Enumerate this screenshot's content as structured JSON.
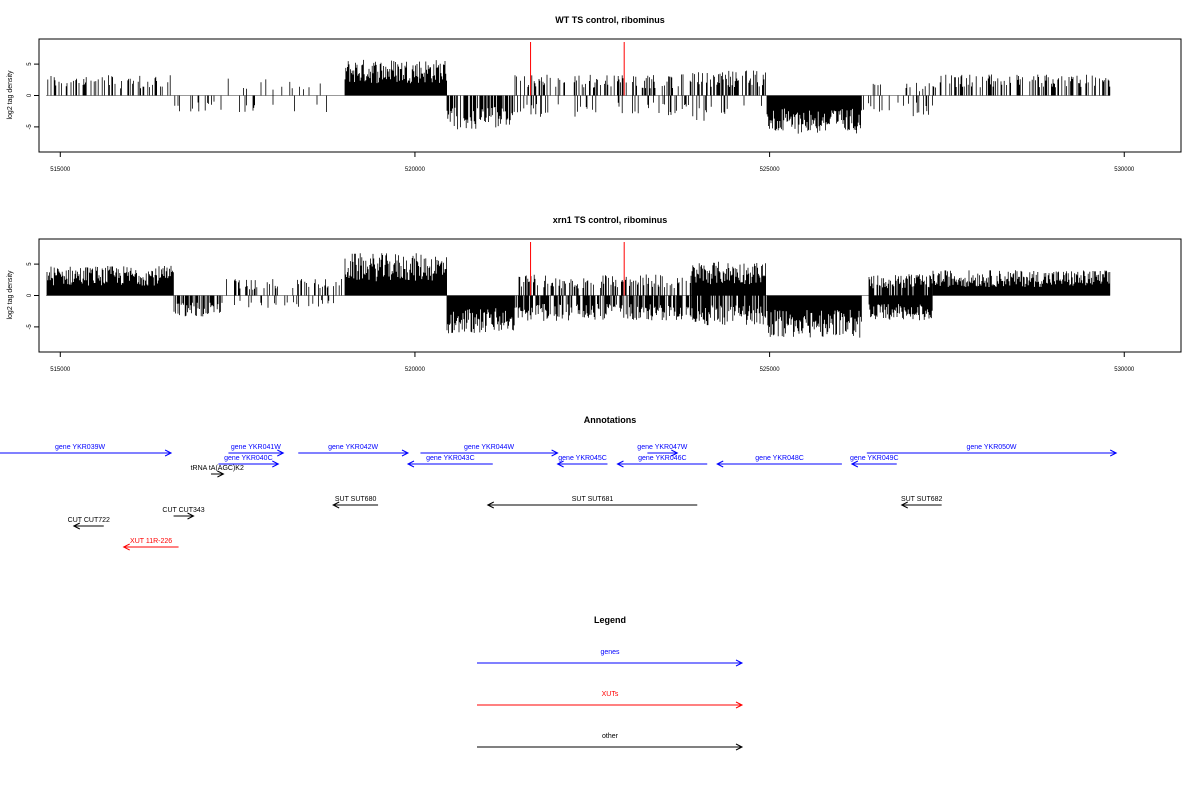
{
  "chart_data": [
    {
      "type": "bar",
      "title": "WT TS control, ribominus",
      "ylabel": "log2 tag density",
      "xlim": [
        514700,
        530800
      ],
      "ylim": [
        -9,
        9
      ],
      "x_ticks": [
        515000,
        520000,
        525000,
        530000
      ],
      "x_tick_labels": [
        "515000",
        "520000",
        "525000",
        "530000"
      ],
      "y_ticks": [
        -5,
        0,
        5
      ],
      "y_tick_labels": [
        "-5",
        "0",
        "5"
      ],
      "data_range": [
        514800,
        529800
      ],
      "marker_lines_x": [
        521630,
        522950
      ],
      "marker_color": "#ff0000",
      "density_segments": [
        {
          "x": [
            514800,
            516600
          ],
          "strand": "+",
          "level": 2.5,
          "density": 0.35
        },
        {
          "x": [
            516600,
            517200
          ],
          "strand": "-",
          "level": 2.0,
          "density": 0.25
        },
        {
          "x": [
            517200,
            519000
          ],
          "strand": "+",
          "level": 2.0,
          "density": 0.08
        },
        {
          "x": [
            517200,
            519000
          ],
          "strand": "-",
          "level": 2.0,
          "density": 0.06
        },
        {
          "x": [
            519000,
            520450
          ],
          "strand": "+",
          "level": 4.3,
          "density": 1.0
        },
        {
          "x": [
            520450,
            521400
          ],
          "strand": "-",
          "level": 4.0,
          "density": 0.7
        },
        {
          "x": [
            521400,
            523900
          ],
          "strand": "+",
          "level": 2.5,
          "density": 0.3
        },
        {
          "x": [
            521400,
            523900
          ],
          "strand": "-",
          "level": 2.5,
          "density": 0.2
        },
        {
          "x": [
            523900,
            524950
          ],
          "strand": "+",
          "level": 3.0,
          "density": 0.55
        },
        {
          "x": [
            523900,
            524950
          ],
          "strand": "-",
          "level": 3.0,
          "density": 0.15
        },
        {
          "x": [
            524950,
            526300
          ],
          "strand": "-",
          "level": 4.5,
          "density": 1.0
        },
        {
          "x": [
            526300,
            527300
          ],
          "strand": "-",
          "level": 2.5,
          "density": 0.2
        },
        {
          "x": [
            526300,
            527300
          ],
          "strand": "+",
          "level": 1.5,
          "density": 0.1
        },
        {
          "x": [
            527300,
            529800
          ],
          "strand": "+",
          "level": 2.5,
          "density": 0.45
        }
      ]
    },
    {
      "type": "bar",
      "title": "xrn1 TS control, ribominus",
      "ylabel": "log2 tag density",
      "xlim": [
        514700,
        530800
      ],
      "ylim": [
        -9,
        9
      ],
      "x_ticks": [
        515000,
        520000,
        525000,
        530000
      ],
      "x_tick_labels": [
        "515000",
        "520000",
        "525000",
        "530000"
      ],
      "y_ticks": [
        -5,
        0,
        5
      ],
      "y_tick_labels": [
        "-5",
        "0",
        "5"
      ],
      "data_range": [
        514800,
        529800
      ],
      "marker_lines_x": [
        521630,
        522950
      ],
      "marker_color": "#ff0000",
      "density_segments": [
        {
          "x": [
            514800,
            516600
          ],
          "strand": "+",
          "level": 3.5,
          "density": 1.0
        },
        {
          "x": [
            516600,
            517300
          ],
          "strand": "-",
          "level": 2.5,
          "density": 0.6
        },
        {
          "x": [
            517300,
            519000
          ],
          "strand": "+",
          "level": 2.0,
          "density": 0.2
        },
        {
          "x": [
            517300,
            519000
          ],
          "strand": "-",
          "level": 1.5,
          "density": 0.15
        },
        {
          "x": [
            519000,
            520450
          ],
          "strand": "+",
          "level": 5.0,
          "density": 1.0
        },
        {
          "x": [
            520450,
            521400
          ],
          "strand": "-",
          "level": 4.5,
          "density": 1.0
        },
        {
          "x": [
            521400,
            523900
          ],
          "strand": "-",
          "level": 3.0,
          "density": 0.7
        },
        {
          "x": [
            521400,
            523900
          ],
          "strand": "+",
          "level": 2.5,
          "density": 0.4
        },
        {
          "x": [
            523900,
            524950
          ],
          "strand": "+",
          "level": 4.0,
          "density": 1.0
        },
        {
          "x": [
            523900,
            524950
          ],
          "strand": "-",
          "level": 3.5,
          "density": 0.8
        },
        {
          "x": [
            524950,
            526300
          ],
          "strand": "-",
          "level": 5.0,
          "density": 1.0
        },
        {
          "x": [
            526400,
            527300
          ],
          "strand": "-",
          "level": 3.0,
          "density": 1.0
        },
        {
          "x": [
            526400,
            527300
          ],
          "strand": "+",
          "level": 2.5,
          "density": 0.8
        },
        {
          "x": [
            527300,
            529800
          ],
          "strand": "+",
          "level": 3.0,
          "density": 1.0
        }
      ]
    }
  ],
  "annotations": {
    "title": "Annotations",
    "features": [
      {
        "label": "gene YKR039W",
        "x": [
          514400,
          518050
        ],
        "row": 0,
        "dir": "right",
        "class": "gene"
      },
      {
        "label": "gene YKR041W",
        "x": [
          519200,
          520300
        ],
        "row": 0,
        "dir": "right",
        "class": "gene"
      },
      {
        "label": "gene YKR042W",
        "x": [
          520600,
          522800
        ],
        "row": 0,
        "dir": "right",
        "class": "gene"
      },
      {
        "label": "gene YKR044W",
        "x": [
          523050,
          525800
        ],
        "row": 0,
        "dir": "right",
        "class": "gene"
      },
      {
        "label": "gene YKR047W",
        "x": [
          527600,
          528200
        ],
        "row": 0,
        "dir": "right",
        "class": "gene"
      },
      {
        "label": "gene YKR050W",
        "x": [
          532000,
          537000
        ],
        "row": 0,
        "dir": "right",
        "class": "gene"
      },
      {
        "label": "gene YKR040C",
        "x": [
          519000,
          520200
        ],
        "row": 1,
        "dir": "right",
        "class": "gene"
      },
      {
        "label": "gene YKR043C",
        "x": [
          522800,
          524500
        ],
        "row": 1,
        "dir": "left",
        "class": "gene"
      },
      {
        "label": "gene YKR045C",
        "x": [
          525800,
          526800
        ],
        "row": 1,
        "dir": "left",
        "class": "gene"
      },
      {
        "label": "gene YKR046C",
        "x": [
          527000,
          528800
        ],
        "row": 1,
        "dir": "left",
        "class": "gene"
      },
      {
        "label": "gene YKR048C",
        "x": [
          529000,
          531500
        ],
        "row": 1,
        "dir": "left",
        "class": "gene"
      },
      {
        "label": "gene YKR049C",
        "x": [
          531700,
          532600
        ],
        "row": 1,
        "dir": "left",
        "class": "gene"
      },
      {
        "label": "tRNA tA(AGC)K2",
        "x": [
          518850,
          519100
        ],
        "row": 2,
        "dir": "right",
        "class": "other"
      },
      {
        "label": "SUT SUT680",
        "x": [
          521300,
          522200
        ],
        "row": 3,
        "dir": "left",
        "class": "other"
      },
      {
        "label": "SUT SUT681",
        "x": [
          524400,
          528600
        ],
        "row": 3,
        "dir": "left",
        "class": "other"
      },
      {
        "label": "SUT SUT682",
        "x": [
          532700,
          533500
        ],
        "row": 3,
        "dir": "left",
        "class": "other"
      },
      {
        "label": "CUT CUT343",
        "x": [
          518100,
          518500
        ],
        "row": 4,
        "dir": "right",
        "class": "other"
      },
      {
        "label": "CUT CUT722",
        "x": [
          516100,
          516700
        ],
        "row": 5,
        "dir": "left",
        "class": "other"
      },
      {
        "label": "XUT 11R-226",
        "x": [
          517100,
          518200
        ],
        "row": 6,
        "dir": "left",
        "class": "xut"
      }
    ]
  },
  "legend": {
    "title": "Legend",
    "items": [
      {
        "label": "genes",
        "color": "#0000ff"
      },
      {
        "label": "XUTs",
        "color": "#ff0000"
      },
      {
        "label": "other",
        "color": "#000000"
      }
    ]
  },
  "colors": {
    "gene": "#0000ff",
    "xut": "#ff0000",
    "other": "#000000",
    "baseline": "#999999"
  }
}
